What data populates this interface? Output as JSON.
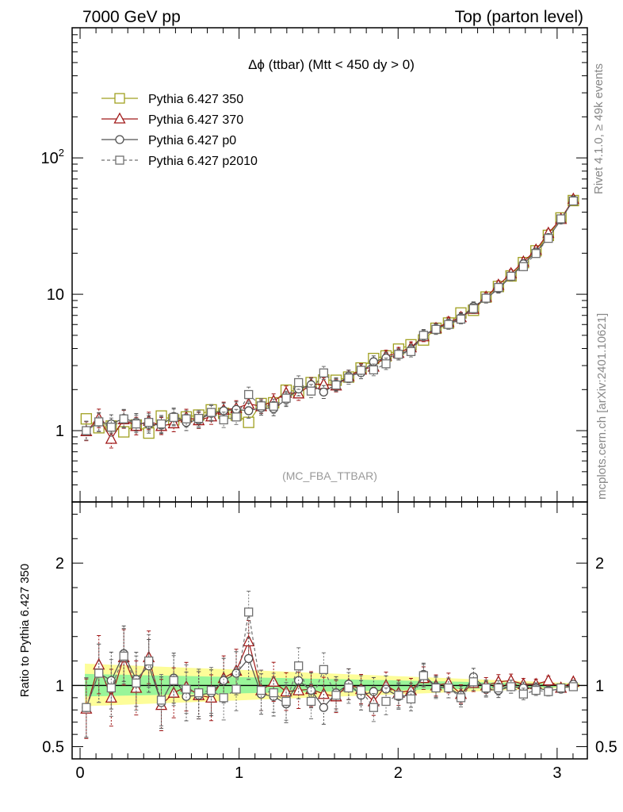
{
  "header": {
    "left": "7000 GeV pp",
    "right": "Top (parton level)"
  },
  "side": {
    "rivet": "Rivet 4.1.0, ≥ 49k events",
    "mcplots": "mcplots.cern.ch [arXiv:2401.10621]"
  },
  "colors": {
    "s350": "#a0a020",
    "s370": "#a01818",
    "p0": "#505050",
    "p2010": "#707070",
    "band_yellow": "#fdfd99",
    "band_green": "#99f599"
  },
  "chart_data": [
    {
      "type": "line",
      "title": "Δϕ (ttbar) (Mtt < 450 dy > 0)",
      "watermark": "(MC_FBA_TTBAR)",
      "xlabel": "",
      "ylabel": "",
      "yscale": "log",
      "xlim": [
        -0.05,
        3.19
      ],
      "ylim": [
        0.3,
        900
      ],
      "ytick_labels": [
        "1",
        "10",
        "10^2"
      ],
      "legend_position": "top-left",
      "x": [
        0.039,
        0.118,
        0.196,
        0.275,
        0.353,
        0.432,
        0.511,
        0.589,
        0.668,
        0.746,
        0.825,
        0.903,
        0.982,
        1.06,
        1.139,
        1.217,
        1.296,
        1.374,
        1.453,
        1.532,
        1.61,
        1.689,
        1.767,
        1.846,
        1.924,
        2.003,
        2.081,
        2.16,
        2.238,
        2.317,
        2.395,
        2.474,
        2.553,
        2.631,
        2.71,
        2.788,
        2.867,
        2.945,
        3.024,
        3.102
      ],
      "series": [
        {
          "name": "Pythia 6.427 350",
          "marker": "square-open",
          "values": [
            1.22,
            1.05,
            1.08,
            0.98,
            1.1,
            0.96,
            1.28,
            1.2,
            1.26,
            1.3,
            1.42,
            1.34,
            1.3,
            1.15,
            1.58,
            1.6,
            1.98,
            1.94,
            2.25,
            2.35,
            2.34,
            2.47,
            2.88,
            3.38,
            3.53,
            3.96,
            4.26,
            4.62,
            5.63,
            6.15,
            7.29,
            7.63,
            9.54,
            11.4,
            13.63,
            17.06,
            20.82,
            27.02,
            36.28,
            48.64
          ]
        },
        {
          "name": "Pythia 6.427 370",
          "marker": "triangle-open",
          "values": [
            0.99,
            1.23,
            0.87,
            1.21,
            1.08,
            1.18,
            1.08,
            1.13,
            1.25,
            1.19,
            1.27,
            1.42,
            1.46,
            1.57,
            1.51,
            1.65,
            1.89,
            1.87,
            2.19,
            2.19,
            2.14,
            2.5,
            2.8,
            2.94,
            3.53,
            3.71,
            4.08,
            4.91,
            5.63,
            6.25,
            6.78,
            7.8,
            9.55,
            11.69,
            14.2,
            17.29,
            21.13,
            28.09,
            35.64,
            49.92
          ]
        },
        {
          "name": "Pythia 6.427 p0",
          "marker": "circle-open",
          "values": [
            1.0,
            1.15,
            1.12,
            1.23,
            1.15,
            1.11,
            1.1,
            1.27,
            1.15,
            1.2,
            1.34,
            1.4,
            1.43,
            1.4,
            1.47,
            1.45,
            1.69,
            2.02,
            2.17,
            1.92,
            2.19,
            2.5,
            2.66,
            3.2,
            3.41,
            3.62,
            3.92,
            5.05,
            5.58,
            6.05,
            6.73,
            8.13,
            9.3,
            10.97,
            13.48,
            16.72,
            20.38,
            26.04,
            35.09,
            49.17
          ]
        },
        {
          "name": "Pythia 6.427 p2010",
          "marker": "square-dashed",
          "values": [
            1.0,
            1.16,
            1.06,
            1.22,
            1.12,
            1.15,
            1.12,
            1.25,
            1.22,
            1.23,
            1.36,
            1.2,
            1.26,
            1.84,
            1.52,
            1.51,
            1.73,
            2.25,
            1.95,
            2.65,
            2.16,
            2.43,
            2.77,
            2.79,
            3.09,
            3.63,
            3.8,
            5.0,
            5.53,
            6.01,
            6.57,
            7.84,
            9.36,
            11.21,
            13.56,
            15.94,
            19.9,
            25.7,
            35.72,
            48.3
          ]
        }
      ]
    },
    {
      "type": "line",
      "xlabel": "",
      "ylabel": "Ratio to Pythia 6.427 350",
      "xlim": [
        -0.05,
        3.19
      ],
      "ylim": [
        0.4,
        2.5
      ],
      "ytick_labels": [
        "0.5",
        "1",
        "2"
      ],
      "xtick_labels": [
        "0",
        "1",
        "2",
        "3"
      ],
      "reference": 1,
      "x": [
        0.039,
        0.118,
        0.196,
        0.275,
        0.353,
        0.432,
        0.511,
        0.589,
        0.668,
        0.746,
        0.825,
        0.903,
        0.982,
        1.06,
        1.139,
        1.217,
        1.296,
        1.374,
        1.453,
        1.532,
        1.61,
        1.689,
        1.767,
        1.846,
        1.924,
        2.003,
        2.081,
        2.16,
        2.238,
        2.317,
        2.395,
        2.474,
        2.553,
        2.631,
        2.71,
        2.788,
        2.867,
        2.945,
        3.024,
        3.102
      ],
      "series": [
        {
          "name": "Pythia 6.427 370",
          "values": [
            0.81,
            1.17,
            0.9,
            1.23,
            0.98,
            1.23,
            0.84,
            0.94,
            0.99,
            0.92,
            0.9,
            1.06,
            1.12,
            1.36,
            0.96,
            1.03,
            0.95,
            0.96,
            0.97,
            0.93,
            0.91,
            1.01,
            0.97,
            0.87,
            1.0,
            0.94,
            0.96,
            1.06,
            1.0,
            1.02,
            0.93,
            1.02,
            1.0,
            1.03,
            1.04,
            1.01,
            1.01,
            1.04,
            0.98,
            1.03
          ]
        },
        {
          "name": "Pythia 6.427 p0",
          "values": [
            0.82,
            1.1,
            1.04,
            1.26,
            1.05,
            1.16,
            0.86,
            1.06,
            0.91,
            0.92,
            0.94,
            1.04,
            1.1,
            1.22,
            0.93,
            0.91,
            0.85,
            1.04,
            0.96,
            0.82,
            0.94,
            1.01,
            0.92,
            0.95,
            0.97,
            0.91,
            0.92,
            1.09,
            0.99,
            0.98,
            0.92,
            1.07,
            0.97,
            0.96,
            0.99,
            0.98,
            0.98,
            0.96,
            0.97,
            1.01
          ]
        },
        {
          "name": "Pythia 6.427 p2010",
          "values": [
            0.82,
            1.1,
            0.98,
            1.24,
            1.02,
            1.2,
            0.88,
            1.04,
            0.97,
            0.94,
            0.96,
            0.9,
            0.97,
            1.6,
            0.96,
            0.94,
            0.87,
            1.16,
            0.87,
            1.13,
            0.92,
            0.98,
            0.96,
            0.82,
            0.87,
            0.92,
            0.89,
            1.08,
            0.98,
            0.98,
            0.9,
            1.03,
            0.98,
            0.98,
            0.99,
            0.93,
            0.96,
            0.95,
            0.98,
            0.99
          ]
        }
      ]
    }
  ]
}
